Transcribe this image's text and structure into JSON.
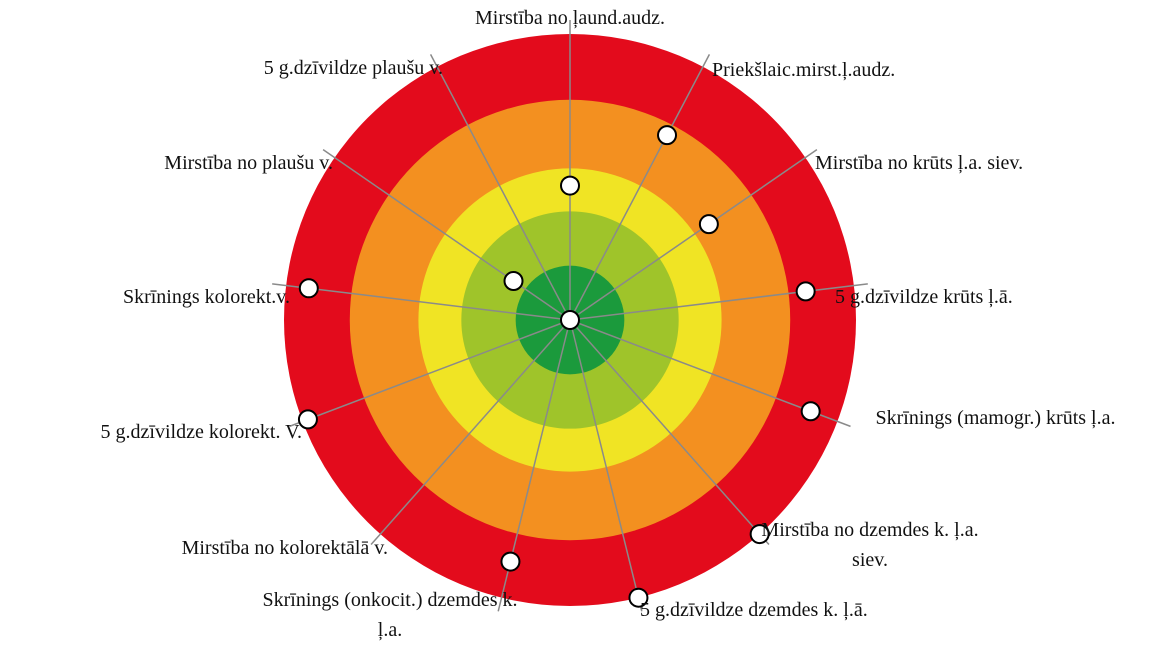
{
  "chart_data": {
    "type": "radar",
    "categories": [
      "Mirstība no ļaund.audz.",
      "Priekšlaic.mirst.ļ.audz.",
      "Mirstība no krūts ļ.a. siev.",
      "5 g.dzīvildze krūts ļ.ā.",
      "Skrīnings (mamogr.) krūts ļ.a.",
      "Mirstība no dzemdes k. ļ.a. siev.",
      "5 g.dzīvildze dzemdes k. ļ.ā.",
      "Skrīnings (onkocit.) dzemdes k. ļ.a.",
      "Mirstība no kolorektālā v.",
      "5 g.dzīvildze kolorekt. V.",
      "Skrīnings kolorekt.v.",
      "Mirstība no plaušu v.",
      "5 g.dzīvildze plaušu v."
    ],
    "values": [
      47,
      73,
      59,
      83,
      90,
      100,
      100,
      87,
      0,
      98,
      92,
      24,
      null
    ],
    "rlim": [
      0,
      100
    ],
    "bands": [
      {
        "outer": 100,
        "color": "#e30b1c"
      },
      {
        "outer": 77,
        "color": "#f39020"
      },
      {
        "outer": 53,
        "color": "#f0e424"
      },
      {
        "outer": 38,
        "color": "#9fc42a"
      },
      {
        "outer": 19,
        "color": "#1b9a3c"
      }
    ],
    "spoke_color": "#8a8a8a",
    "point_color": "#ffffff"
  }
}
